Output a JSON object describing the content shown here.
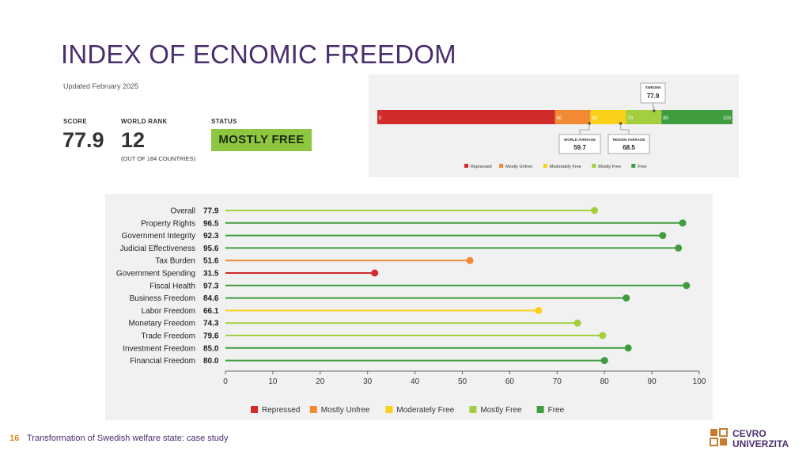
{
  "slide": {
    "title": "INDEX OF ECNOMIC FREEDOM",
    "page_number": "16",
    "footer_text": "Transformation of Swedish welfare state: case study",
    "logo_line1": "CEVRO",
    "logo_line2": "UNIVERZITA"
  },
  "summary": {
    "updated": "Updated February 2025",
    "score_label": "SCORE",
    "score": "77.9",
    "rank_label": "WORLD RANK",
    "rank": "12",
    "rank_note": "(OUT OF 184 COUNTRIES)",
    "status_label": "STATUS",
    "status": "MOSTLY FREE"
  },
  "colors": {
    "repressed": "#d22b2b",
    "mostly_unfree": "#f28a34",
    "moderately_free": "#fcd01a",
    "mostly_free": "#a3cf3f",
    "free": "#3f9d3f"
  },
  "chart_data": [
    {
      "type": "bar",
      "subtype": "segmented-scale",
      "xlim": [
        0,
        100
      ],
      "segments": [
        {
          "label": "0",
          "start": 0,
          "end": 50,
          "category": "Repressed"
        },
        {
          "label": "50",
          "start": 50,
          "end": 60,
          "category": "Mostly Unfree"
        },
        {
          "label": "60",
          "start": 60,
          "end": 70,
          "category": "Moderately Free"
        },
        {
          "label": "70",
          "start": 70,
          "end": 80,
          "category": "Mostly Free"
        },
        {
          "label": "80",
          "start": 80,
          "end": 100,
          "category": "Free"
        }
      ],
      "end_label": "100",
      "markers": [
        {
          "label": "SWEDEN",
          "value": 77.9,
          "value_text": "77.9",
          "position": "above"
        },
        {
          "label": "WORLD AVERAGE",
          "value": 59.7,
          "value_text": "59.7",
          "position": "below"
        },
        {
          "label": "REGION AVERAGE",
          "value": 68.5,
          "value_text": "68.5",
          "position": "below"
        }
      ],
      "legend": [
        "Repressed",
        "Mostly Unfree",
        "Moderately Free",
        "Mostly Free",
        "Free"
      ],
      "legend_position": "bottom"
    },
    {
      "type": "scatter",
      "subtype": "lollipop",
      "categories": [
        "Overall",
        "Property Rights",
        "Government Integrity",
        "Judicial Effectiveness",
        "Tax Burden",
        "Government Spending",
        "Fiscal Health",
        "Business Freedom",
        "Labor Freedom",
        "Monetary Freedom",
        "Trade Freedom",
        "Investment Freedom",
        "Financial Freedom"
      ],
      "values": [
        77.9,
        96.5,
        92.3,
        95.6,
        51.6,
        31.5,
        97.3,
        84.6,
        66.1,
        74.3,
        79.6,
        85.0,
        80.0
      ],
      "value_labels": [
        "77.9",
        "96.5",
        "92.3",
        "95.6",
        "51.6",
        "31.5",
        "97.3",
        "84.6",
        "66.1",
        "74.3",
        "79.6",
        "85.0",
        "80.0"
      ],
      "xlim": [
        0,
        100
      ],
      "xticks": [
        "0",
        "10",
        "20",
        "30",
        "40",
        "50",
        "60",
        "70",
        "80",
        "90",
        "100"
      ],
      "legend": [
        "Repressed",
        "Mostly Unfree",
        "Moderately Free",
        "Mostly Free",
        "Free"
      ],
      "legend_position": "bottom",
      "grid": false
    }
  ]
}
